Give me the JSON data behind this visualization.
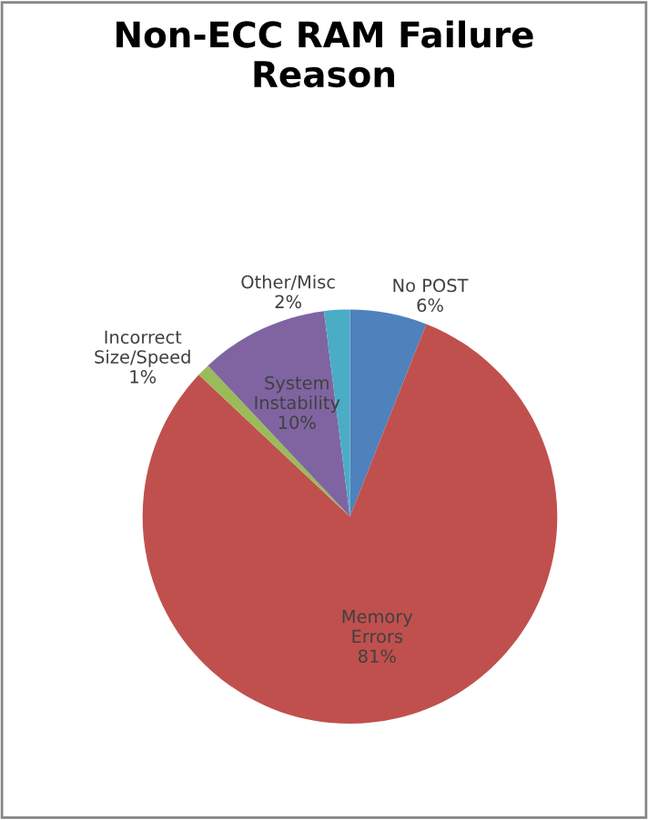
{
  "chart_data": {
    "type": "pie",
    "title": "Non-ECC RAM Failure\nReason",
    "categories": [
      "No POST",
      "Memory\nErrors",
      "Incorrect\nSize/Speed",
      "System\nInstability",
      "Other/Misc"
    ],
    "values": [
      6,
      81,
      1,
      10,
      2
    ],
    "value_labels": [
      "6%",
      "81%",
      "1%",
      "10%",
      "2%"
    ],
    "colors": [
      "#4f81bd",
      "#c0504d",
      "#9bbb59",
      "#8064a2",
      "#4bacc6"
    ],
    "legend": false
  }
}
